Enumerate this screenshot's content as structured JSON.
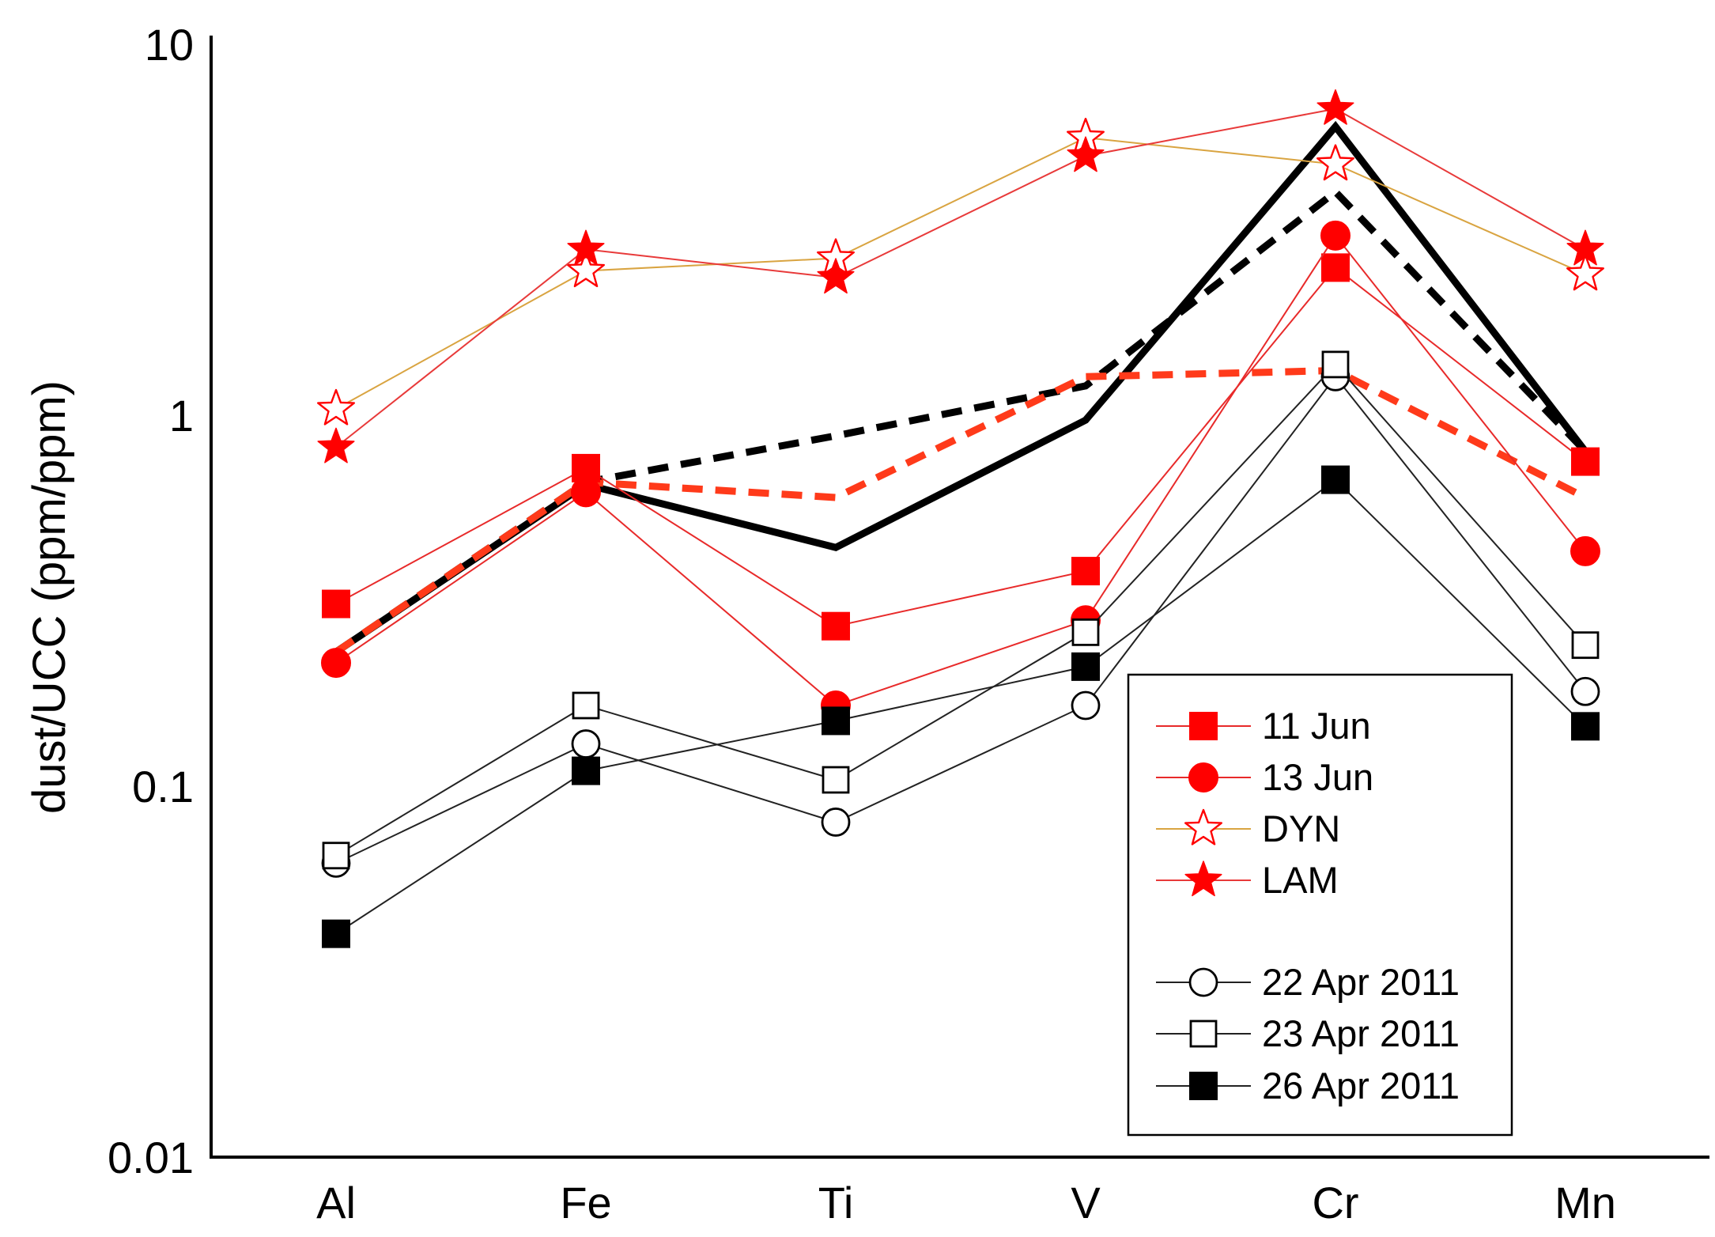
{
  "chart_data": {
    "type": "line",
    "title": "",
    "xlabel": "",
    "ylabel": "dust/UCC (ppm/ppm)",
    "yscale": "log",
    "ylim": [
      0.01,
      10
    ],
    "yticks": [
      {
        "value": 10,
        "label": "10"
      },
      {
        "value": 1,
        "label": "1"
      },
      {
        "value": 0.1,
        "label": "0.1"
      },
      {
        "value": 0.01,
        "label": "0.01"
      }
    ],
    "categories": [
      "Al",
      "Fe",
      "Ti",
      "V",
      "Cr",
      "Mn"
    ],
    "series": [
      {
        "name": "DYN",
        "label": "DYN",
        "values": [
          1.04,
          2.45,
          2.65,
          5.6,
          4.75,
          2.4
        ],
        "color": "#d9a441",
        "line": "thin",
        "marker": "star-open",
        "marker_color": "#ff0000",
        "legend": true
      },
      {
        "name": "LAM",
        "label": "LAM",
        "values": [
          0.82,
          2.8,
          2.35,
          5.0,
          6.7,
          2.8
        ],
        "color": "#e83a3a",
        "line": "thin",
        "marker": "star-filled",
        "marker_color": "#ff0000",
        "legend": true
      },
      {
        "name": "11 Jun",
        "label": "11 Jun",
        "values": [
          0.31,
          0.72,
          0.27,
          0.38,
          2.5,
          0.75
        ],
        "color": "#e82a2a",
        "line": "thin",
        "marker": "square-filled",
        "marker_color": "#ff0000",
        "legend": true
      },
      {
        "name": "13 Jun",
        "label": "13 Jun",
        "values": [
          0.215,
          0.62,
          0.165,
          0.28,
          3.05,
          0.43
        ],
        "color": "#e82a2a",
        "line": "thin",
        "marker": "circle-filled",
        "marker_color": "#ff0000",
        "legend": true
      },
      {
        "name": "22 Apr 2011",
        "label": "22 Apr 2011",
        "values": [
          0.062,
          0.13,
          0.08,
          0.165,
          1.27,
          0.18
        ],
        "color": "#222222",
        "line": "thin",
        "marker": "circle-open",
        "marker_color": "#000000",
        "legend": true
      },
      {
        "name": "23 Apr 2011",
        "label": "23 Apr 2011",
        "values": [
          0.065,
          0.165,
          0.104,
          0.26,
          1.37,
          0.24
        ],
        "color": "#222222",
        "line": "thin",
        "marker": "square-open",
        "marker_color": "#000000",
        "legend": true
      },
      {
        "name": "26 Apr 2011",
        "label": "26 Apr 2011",
        "values": [
          0.04,
          0.11,
          0.15,
          0.21,
          0.67,
          0.145
        ],
        "color": "#222222",
        "line": "thin",
        "marker": "square-filled",
        "marker_color": "#000000",
        "legend": true
      },
      {
        "name": "black-solid",
        "values": [
          0.23,
          0.65,
          0.44,
          0.97,
          6.0,
          0.8
        ],
        "color": "#000000",
        "line": "thick-solid",
        "marker": "none",
        "legend": false
      },
      {
        "name": "black-dashed",
        "values": [
          0.23,
          0.66,
          0.88,
          1.2,
          4.0,
          0.8
        ],
        "color": "#000000",
        "line": "thick-dashed",
        "marker": "none",
        "legend": false
      },
      {
        "name": "red-dashed",
        "values": [
          0.23,
          0.66,
          0.6,
          1.27,
          1.32,
          0.6
        ],
        "color": "#ff3a1a",
        "line": "thick-dashed",
        "marker": "none",
        "legend": false
      }
    ],
    "legend": {
      "position": "lower-right",
      "groups": [
        [
          "11 Jun",
          "13 Jun",
          "DYN",
          "LAM"
        ],
        [
          "22 Apr 2011",
          "23 Apr 2011",
          "26 Apr 2011"
        ]
      ]
    },
    "grid": false
  }
}
